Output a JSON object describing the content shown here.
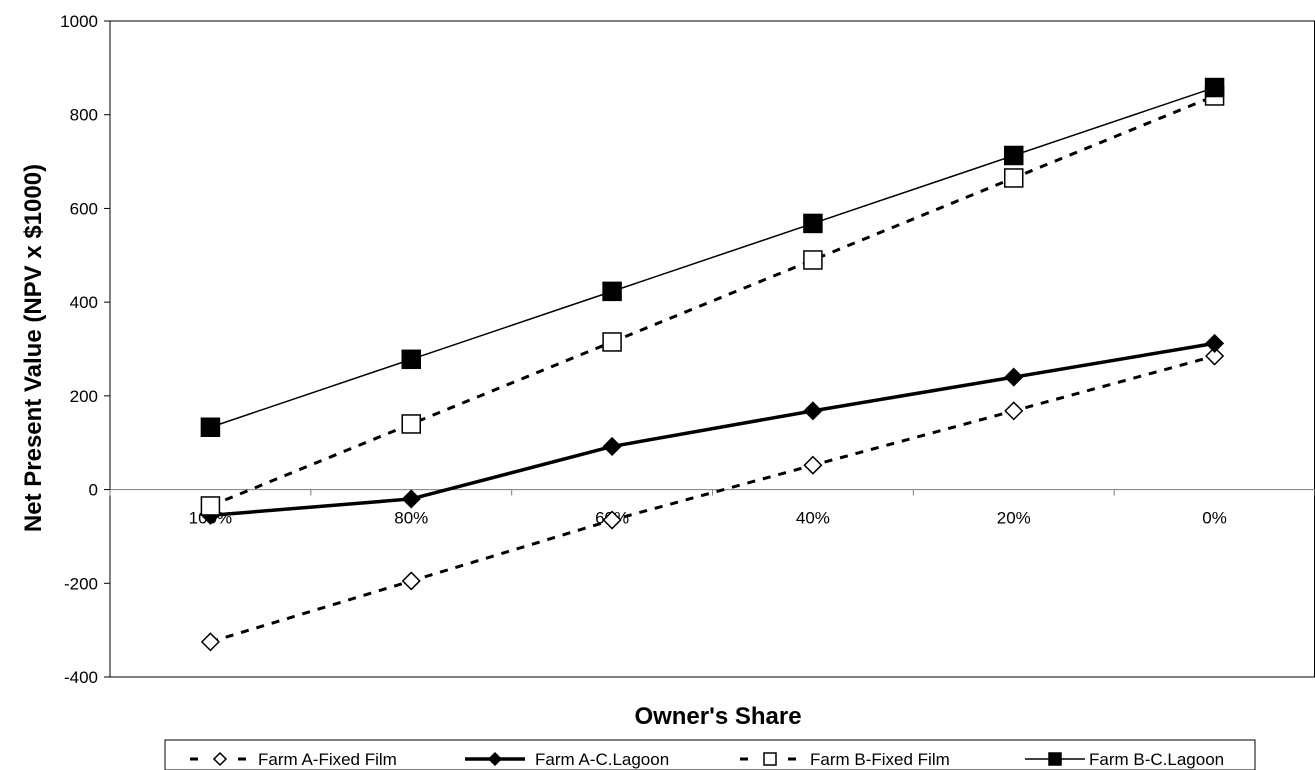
{
  "chart_data": {
    "type": "line",
    "title": "",
    "xlabel": "Owner's Share",
    "ylabel": "Net Present Value (NPV x $1000)",
    "categories": [
      "100%",
      "80%",
      "60%",
      "40%",
      "20%",
      "0%"
    ],
    "ylim": [
      -400,
      1000
    ],
    "yticks": [
      -400,
      -200,
      0,
      200,
      400,
      600,
      800,
      1000
    ],
    "grid": false,
    "legend_position": "bottom",
    "series": [
      {
        "name": "Farm A-Fixed Film",
        "values": [
          -325,
          -195,
          -65,
          52,
          168,
          285
        ],
        "line": "dashed",
        "marker": "open-diamond",
        "color": "#000000"
      },
      {
        "name": "Farm A-C.Lagoon",
        "values": [
          -55,
          -20,
          92,
          168,
          240,
          312
        ],
        "line": "solid-thick",
        "marker": "filled-diamond",
        "color": "#000000"
      },
      {
        "name": "Farm B-Fixed Film",
        "values": [
          -35,
          140,
          315,
          490,
          665,
          840
        ],
        "line": "dashed",
        "marker": "open-square",
        "color": "#000000"
      },
      {
        "name": "Farm B-C.Lagoon",
        "values": [
          133,
          278,
          423,
          568,
          713,
          858
        ],
        "line": "solid-thin",
        "marker": "filled-square",
        "color": "#000000"
      }
    ]
  }
}
